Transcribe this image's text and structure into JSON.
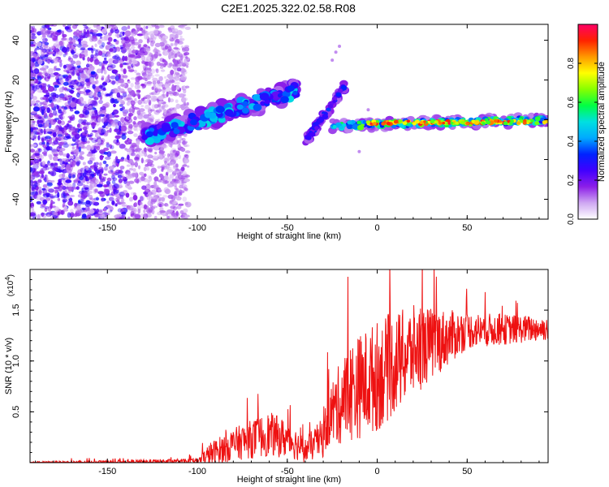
{
  "title": "C2E1.2025.322.02.58.R08",
  "chart_data": [
    {
      "type": "heatmap",
      "name": "spectrogram",
      "xlabel": "Height of straight line (km)",
      "ylabel": "Frequency (Hz)",
      "xlim": [
        -193,
        95
      ],
      "ylim": [
        -50,
        48
      ],
      "xticks": [
        -150,
        -100,
        -50,
        0,
        50
      ],
      "xtick_labels": [
        "-150",
        "-100",
        "-50",
        "0",
        "50"
      ],
      "yticks": [
        -40,
        -20,
        0,
        20,
        40
      ],
      "ytick_labels": [
        "-40",
        "-20",
        "0",
        "20",
        "40"
      ],
      "colorbar": {
        "label": "Normalized spectral amplitude",
        "range": [
          0,
          1
        ],
        "ticks": [
          0.0,
          0.2,
          0.4,
          0.6,
          0.8
        ],
        "tick_labels": [
          "0.0",
          "0.2",
          "0.4",
          "0.6",
          "0.8"
        ],
        "colors": [
          "#ffffff",
          "#cfa8f2",
          "#8c1ee8",
          "#4000ff",
          "#0022ff",
          "#00aaff",
          "#00e0e0",
          "#00ff44",
          "#88ff00",
          "#ffff00",
          "#ff9900",
          "#ff2200",
          "#ff0066"
        ]
      },
      "features": [
        {
          "label": "noise field",
          "x_range": [
            -193,
            -105
          ],
          "freq_range": [
            -50,
            48
          ],
          "amplitude": 0.1
        },
        {
          "label": "rising trace",
          "x_start": -130,
          "x_end": -45,
          "freq_start": -9,
          "freq_end": 15,
          "amplitude": 0.4
        },
        {
          "label": "steep branch",
          "x_start": -40,
          "x_end": -18,
          "freq_start": -11,
          "freq_end": 17,
          "amplitude": 0.25
        },
        {
          "label": "steady trace",
          "x_start": -25,
          "x_end": 95,
          "freq_start": -3,
          "freq_end": 0,
          "amplitude": 0.9
        }
      ]
    },
    {
      "type": "line",
      "name": "snr",
      "xlabel": "Height of straight line (km)",
      "ylabel": "SNR (10 * v/v)",
      "multiplier_label": "(x10",
      "multiplier_exponent": "4",
      "xlim": [
        -193,
        95
      ],
      "ylim": [
        0,
        1.9
      ],
      "xticks": [
        -150,
        -100,
        -50,
        0,
        50
      ],
      "xtick_labels": [
        "-150",
        "-100",
        "-50",
        "0",
        "50"
      ],
      "yticks": [
        0.5,
        1.0,
        1.5
      ],
      "ytick_labels": [
        "0.5",
        "1.0",
        "1.5"
      ],
      "color": "#ee1111",
      "envelope": [
        {
          "x": -193,
          "base": 0.0,
          "noise": 0.01
        },
        {
          "x": -100,
          "base": 0.01,
          "noise": 0.03
        },
        {
          "x": -93,
          "base": 0.08,
          "noise": 0.12
        },
        {
          "x": -80,
          "base": 0.18,
          "noise": 0.16
        },
        {
          "x": -60,
          "base": 0.28,
          "noise": 0.22
        },
        {
          "x": -48,
          "base": 0.22,
          "noise": 0.18
        },
        {
          "x": -40,
          "base": 0.12,
          "noise": 0.12
        },
        {
          "x": -30,
          "base": 0.25,
          "noise": 0.2
        },
        {
          "x": -27,
          "base": 0.45,
          "noise": 0.3
        },
        {
          "x": -15,
          "base": 0.7,
          "noise": 0.5
        },
        {
          "x": 0,
          "base": 0.85,
          "noise": 0.55
        },
        {
          "x": 20,
          "base": 1.1,
          "noise": 0.45
        },
        {
          "x": 50,
          "base": 1.3,
          "noise": 0.18
        },
        {
          "x": 95,
          "base": 1.32,
          "noise": 0.12
        }
      ]
    }
  ]
}
